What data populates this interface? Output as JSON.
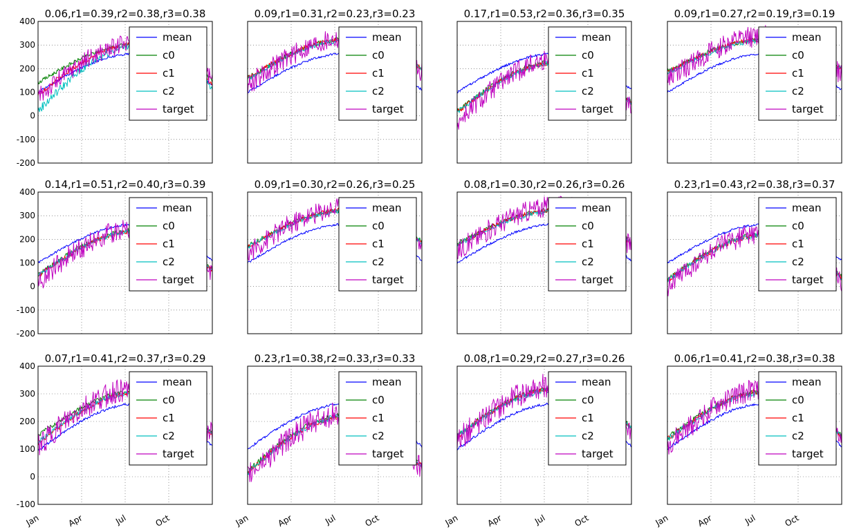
{
  "figure": {
    "legend_position": "upper-right",
    "grid": true
  },
  "colors": {
    "mean": "#0000ff",
    "c0": "#008000",
    "c1": "#ff0000",
    "c2": "#00bfbf",
    "target": "#bf00bf"
  },
  "chart_data": [
    {
      "type": "line",
      "title": "0.06,r1=0.39,r2=0.38,r3=0.38",
      "ylim": [
        -200,
        400
      ],
      "yticks": [
        -200,
        -100,
        0,
        100,
        200,
        300,
        400
      ],
      "show_ytick_labels": true,
      "show_xtick_labels": false,
      "xticks": [
        "Jan",
        "Apr",
        "Jul",
        "Oct"
      ],
      "legend": [
        "mean",
        "c0",
        "c1",
        "c2",
        "target"
      ],
      "series": [
        {
          "name": "mean",
          "start": 100,
          "peak": 265,
          "end": 130,
          "noise": 5
        },
        {
          "name": "c0",
          "start": 140,
          "peak": 305,
          "end": 150,
          "noise": 8
        },
        {
          "name": "c1",
          "start": 90,
          "peak": 305,
          "end": 130,
          "noise": 10
        },
        {
          "name": "c2",
          "start": 20,
          "peak": 300,
          "end": 120,
          "noise": 18
        },
        {
          "name": "target",
          "start": 80,
          "peak": 310,
          "end": 150,
          "noise": 40
        }
      ]
    },
    {
      "type": "line",
      "title": "0.09,r1=0.31,r2=0.23,r3=0.23",
      "ylim": [
        -200,
        400
      ],
      "yticks": [
        -200,
        -100,
        0,
        100,
        200,
        300,
        400
      ],
      "show_ytick_labels": false,
      "show_xtick_labels": false,
      "xticks": [
        "Jan",
        "Apr",
        "Jul",
        "Oct"
      ],
      "legend": [
        "mean",
        "c0",
        "c1",
        "c2",
        "target"
      ],
      "series": [
        {
          "name": "mean",
          "start": 100,
          "peak": 265,
          "end": 110,
          "noise": 5
        },
        {
          "name": "c0",
          "start": 160,
          "peak": 325,
          "end": 200,
          "noise": 10
        },
        {
          "name": "c1",
          "start": 160,
          "peak": 325,
          "end": 200,
          "noise": 10
        },
        {
          "name": "c2",
          "start": 155,
          "peak": 320,
          "end": 195,
          "noise": 10
        },
        {
          "name": "target",
          "start": 130,
          "peak": 330,
          "end": 180,
          "noise": 45
        }
      ]
    },
    {
      "type": "line",
      "title": "0.17,r1=0.53,r2=0.36,r3=0.35",
      "ylim": [
        -200,
        400
      ],
      "yticks": [
        -200,
        -100,
        0,
        100,
        200,
        300,
        400
      ],
      "show_ytick_labels": false,
      "show_xtick_labels": false,
      "xticks": [
        "Jan",
        "Apr",
        "Jul",
        "Oct"
      ],
      "legend": [
        "mean",
        "c0",
        "c1",
        "c2",
        "target"
      ],
      "series": [
        {
          "name": "mean",
          "start": 100,
          "peak": 265,
          "end": 110,
          "noise": 5
        },
        {
          "name": "c0",
          "start": 20,
          "peak": 230,
          "end": 60,
          "noise": 10
        },
        {
          "name": "c1",
          "start": 15,
          "peak": 225,
          "end": 55,
          "noise": 10
        },
        {
          "name": "c2",
          "start": 15,
          "peak": 225,
          "end": 55,
          "noise": 10
        },
        {
          "name": "target",
          "start": -30,
          "peak": 240,
          "end": 40,
          "noise": 45
        }
      ]
    },
    {
      "type": "line",
      "title": "0.09,r1=0.27,r2=0.19,r3=0.19",
      "ylim": [
        -200,
        400
      ],
      "yticks": [
        -200,
        -100,
        0,
        100,
        200,
        300,
        400
      ],
      "show_ytick_labels": false,
      "show_xtick_labels": false,
      "xticks": [
        "Jan",
        "Apr",
        "Jul",
        "Oct"
      ],
      "legend": [
        "mean",
        "c0",
        "c1",
        "c2",
        "target"
      ],
      "series": [
        {
          "name": "mean",
          "start": 100,
          "peak": 265,
          "end": 110,
          "noise": 5
        },
        {
          "name": "c0",
          "start": 190,
          "peak": 325,
          "end": 200,
          "noise": 10
        },
        {
          "name": "c1",
          "start": 185,
          "peak": 325,
          "end": 195,
          "noise": 10
        },
        {
          "name": "c2",
          "start": 180,
          "peak": 320,
          "end": 195,
          "noise": 10
        },
        {
          "name": "target",
          "start": 150,
          "peak": 340,
          "end": 170,
          "noise": 45
        }
      ]
    },
    {
      "type": "line",
      "title": "0.14,r1=0.51,r2=0.40,r3=0.39",
      "ylim": [
        -200,
        400
      ],
      "yticks": [
        -200,
        -100,
        0,
        100,
        200,
        300,
        400
      ],
      "show_ytick_labels": true,
      "show_xtick_labels": false,
      "xticks": [
        "Jan",
        "Apr",
        "Jul",
        "Oct"
      ],
      "legend": [
        "mean",
        "c0",
        "c1",
        "c2",
        "target"
      ],
      "series": [
        {
          "name": "mean",
          "start": 100,
          "peak": 265,
          "end": 110,
          "noise": 5
        },
        {
          "name": "c0",
          "start": 50,
          "peak": 240,
          "end": 70,
          "noise": 10
        },
        {
          "name": "c1",
          "start": 45,
          "peak": 235,
          "end": 65,
          "noise": 10
        },
        {
          "name": "c2",
          "start": 45,
          "peak": 235,
          "end": 65,
          "noise": 10
        },
        {
          "name": "target",
          "start": 20,
          "peak": 250,
          "end": 60,
          "noise": 45
        }
      ]
    },
    {
      "type": "line",
      "title": "0.09,r1=0.30,r2=0.26,r3=0.25",
      "ylim": [
        -200,
        400
      ],
      "yticks": [
        -200,
        -100,
        0,
        100,
        200,
        300,
        400
      ],
      "show_ytick_labels": false,
      "show_xtick_labels": false,
      "xticks": [
        "Jan",
        "Apr",
        "Jul",
        "Oct"
      ],
      "legend": [
        "mean",
        "c0",
        "c1",
        "c2",
        "target"
      ],
      "series": [
        {
          "name": "mean",
          "start": 100,
          "peak": 265,
          "end": 110,
          "noise": 5
        },
        {
          "name": "c0",
          "start": 170,
          "peak": 325,
          "end": 190,
          "noise": 10
        },
        {
          "name": "c1",
          "start": 165,
          "peak": 325,
          "end": 185,
          "noise": 10
        },
        {
          "name": "c2",
          "start": 165,
          "peak": 320,
          "end": 185,
          "noise": 10
        },
        {
          "name": "target",
          "start": 140,
          "peak": 335,
          "end": 170,
          "noise": 45
        }
      ]
    },
    {
      "type": "line",
      "title": "0.08,r1=0.30,r2=0.26,r3=0.26",
      "ylim": [
        -200,
        400
      ],
      "yticks": [
        -200,
        -100,
        0,
        100,
        200,
        300,
        400
      ],
      "show_ytick_labels": false,
      "show_xtick_labels": false,
      "xticks": [
        "Jan",
        "Apr",
        "Jul",
        "Oct"
      ],
      "legend": [
        "mean",
        "c0",
        "c1",
        "c2",
        "target"
      ],
      "series": [
        {
          "name": "mean",
          "start": 100,
          "peak": 265,
          "end": 110,
          "noise": 5
        },
        {
          "name": "c0",
          "start": 180,
          "peak": 325,
          "end": 190,
          "noise": 10
        },
        {
          "name": "c1",
          "start": 175,
          "peak": 325,
          "end": 185,
          "noise": 10
        },
        {
          "name": "c2",
          "start": 175,
          "peak": 320,
          "end": 185,
          "noise": 10
        },
        {
          "name": "target",
          "start": 150,
          "peak": 340,
          "end": 170,
          "noise": 45
        }
      ]
    },
    {
      "type": "line",
      "title": "0.23,r1=0.43,r2=0.38,r3=0.37",
      "ylim": [
        -200,
        400
      ],
      "yticks": [
        -200,
        -100,
        0,
        100,
        200,
        300,
        400
      ],
      "show_ytick_labels": false,
      "show_xtick_labels": false,
      "xticks": [
        "Jan",
        "Apr",
        "Jul",
        "Oct"
      ],
      "legend": [
        "mean",
        "c0",
        "c1",
        "c2",
        "target"
      ],
      "series": [
        {
          "name": "mean",
          "start": 100,
          "peak": 265,
          "end": 110,
          "noise": 5
        },
        {
          "name": "c0",
          "start": 30,
          "peak": 225,
          "end": 40,
          "noise": 10
        },
        {
          "name": "c1",
          "start": 25,
          "peak": 220,
          "end": 35,
          "noise": 10
        },
        {
          "name": "c2",
          "start": 25,
          "peak": 220,
          "end": 35,
          "noise": 10
        },
        {
          "name": "target",
          "start": 0,
          "peak": 230,
          "end": 20,
          "noise": 45
        }
      ]
    },
    {
      "type": "line",
      "title": "0.07,r1=0.41,r2=0.37,r3=0.29",
      "ylim": [
        -100,
        400
      ],
      "yticks": [
        -100,
        0,
        100,
        200,
        300,
        400
      ],
      "show_ytick_labels": true,
      "show_xtick_labels": true,
      "xticks": [
        "Jan",
        "Apr",
        "Jul",
        "Oct"
      ],
      "legend": [
        "mean",
        "c0",
        "c1",
        "c2",
        "target"
      ],
      "series": [
        {
          "name": "mean",
          "start": 95,
          "peak": 265,
          "end": 110,
          "noise": 5
        },
        {
          "name": "c0",
          "start": 150,
          "peak": 310,
          "end": 160,
          "noise": 8
        },
        {
          "name": "c1",
          "start": 120,
          "peak": 305,
          "end": 150,
          "noise": 8
        },
        {
          "name": "c2",
          "start": 125,
          "peak": 305,
          "end": 150,
          "noise": 8
        },
        {
          "name": "target",
          "start": 110,
          "peak": 320,
          "end": 150,
          "noise": 45
        }
      ]
    },
    {
      "type": "line",
      "title": "0.23,r1=0.38,r2=0.33,r3=0.33",
      "ylim": [
        -100,
        400
      ],
      "yticks": [
        -100,
        0,
        100,
        200,
        300,
        400
      ],
      "show_ytick_labels": false,
      "show_xtick_labels": true,
      "xticks": [
        "Jan",
        "Apr",
        "Jul",
        "Oct"
      ],
      "legend": [
        "mean",
        "c0",
        "c1",
        "c2",
        "target"
      ],
      "series": [
        {
          "name": "mean",
          "start": 100,
          "peak": 265,
          "end": 110,
          "noise": 5
        },
        {
          "name": "c0",
          "start": 20,
          "peak": 225,
          "end": 40,
          "noise": 10
        },
        {
          "name": "c1",
          "start": 15,
          "peak": 220,
          "end": 35,
          "noise": 10
        },
        {
          "name": "c2",
          "start": 15,
          "peak": 220,
          "end": 35,
          "noise": 10
        },
        {
          "name": "target",
          "start": 0,
          "peak": 230,
          "end": 30,
          "noise": 45
        }
      ]
    },
    {
      "type": "line",
      "title": "0.08,r1=0.29,r2=0.27,r3=0.26",
      "ylim": [
        -100,
        400
      ],
      "yticks": [
        -100,
        0,
        100,
        200,
        300,
        400
      ],
      "show_ytick_labels": false,
      "show_xtick_labels": true,
      "xticks": [
        "Jan",
        "Apr",
        "Jul",
        "Oct"
      ],
      "legend": [
        "mean",
        "c0",
        "c1",
        "c2",
        "target"
      ],
      "series": [
        {
          "name": "mean",
          "start": 100,
          "peak": 265,
          "end": 110,
          "noise": 5
        },
        {
          "name": "c0",
          "start": 150,
          "peak": 320,
          "end": 180,
          "noise": 10
        },
        {
          "name": "c1",
          "start": 145,
          "peak": 320,
          "end": 175,
          "noise": 10
        },
        {
          "name": "c2",
          "start": 145,
          "peak": 315,
          "end": 175,
          "noise": 10
        },
        {
          "name": "target",
          "start": 130,
          "peak": 335,
          "end": 170,
          "noise": 45
        }
      ]
    },
    {
      "type": "line",
      "title": "0.06,r1=0.41,r2=0.38,r3=0.38",
      "ylim": [
        -100,
        400
      ],
      "yticks": [
        -100,
        0,
        100,
        200,
        300,
        400
      ],
      "show_ytick_labels": false,
      "show_xtick_labels": true,
      "xticks": [
        "Jan",
        "Apr",
        "Jul",
        "Oct"
      ],
      "legend": [
        "mean",
        "c0",
        "c1",
        "c2",
        "target"
      ],
      "series": [
        {
          "name": "mean",
          "start": 100,
          "peak": 265,
          "end": 110,
          "noise": 5
        },
        {
          "name": "c0",
          "start": 140,
          "peak": 310,
          "end": 150,
          "noise": 10
        },
        {
          "name": "c1",
          "start": 135,
          "peak": 310,
          "end": 145,
          "noise": 10
        },
        {
          "name": "c2",
          "start": 135,
          "peak": 305,
          "end": 145,
          "noise": 10
        },
        {
          "name": "target",
          "start": 110,
          "peak": 320,
          "end": 140,
          "noise": 40
        }
      ]
    }
  ]
}
